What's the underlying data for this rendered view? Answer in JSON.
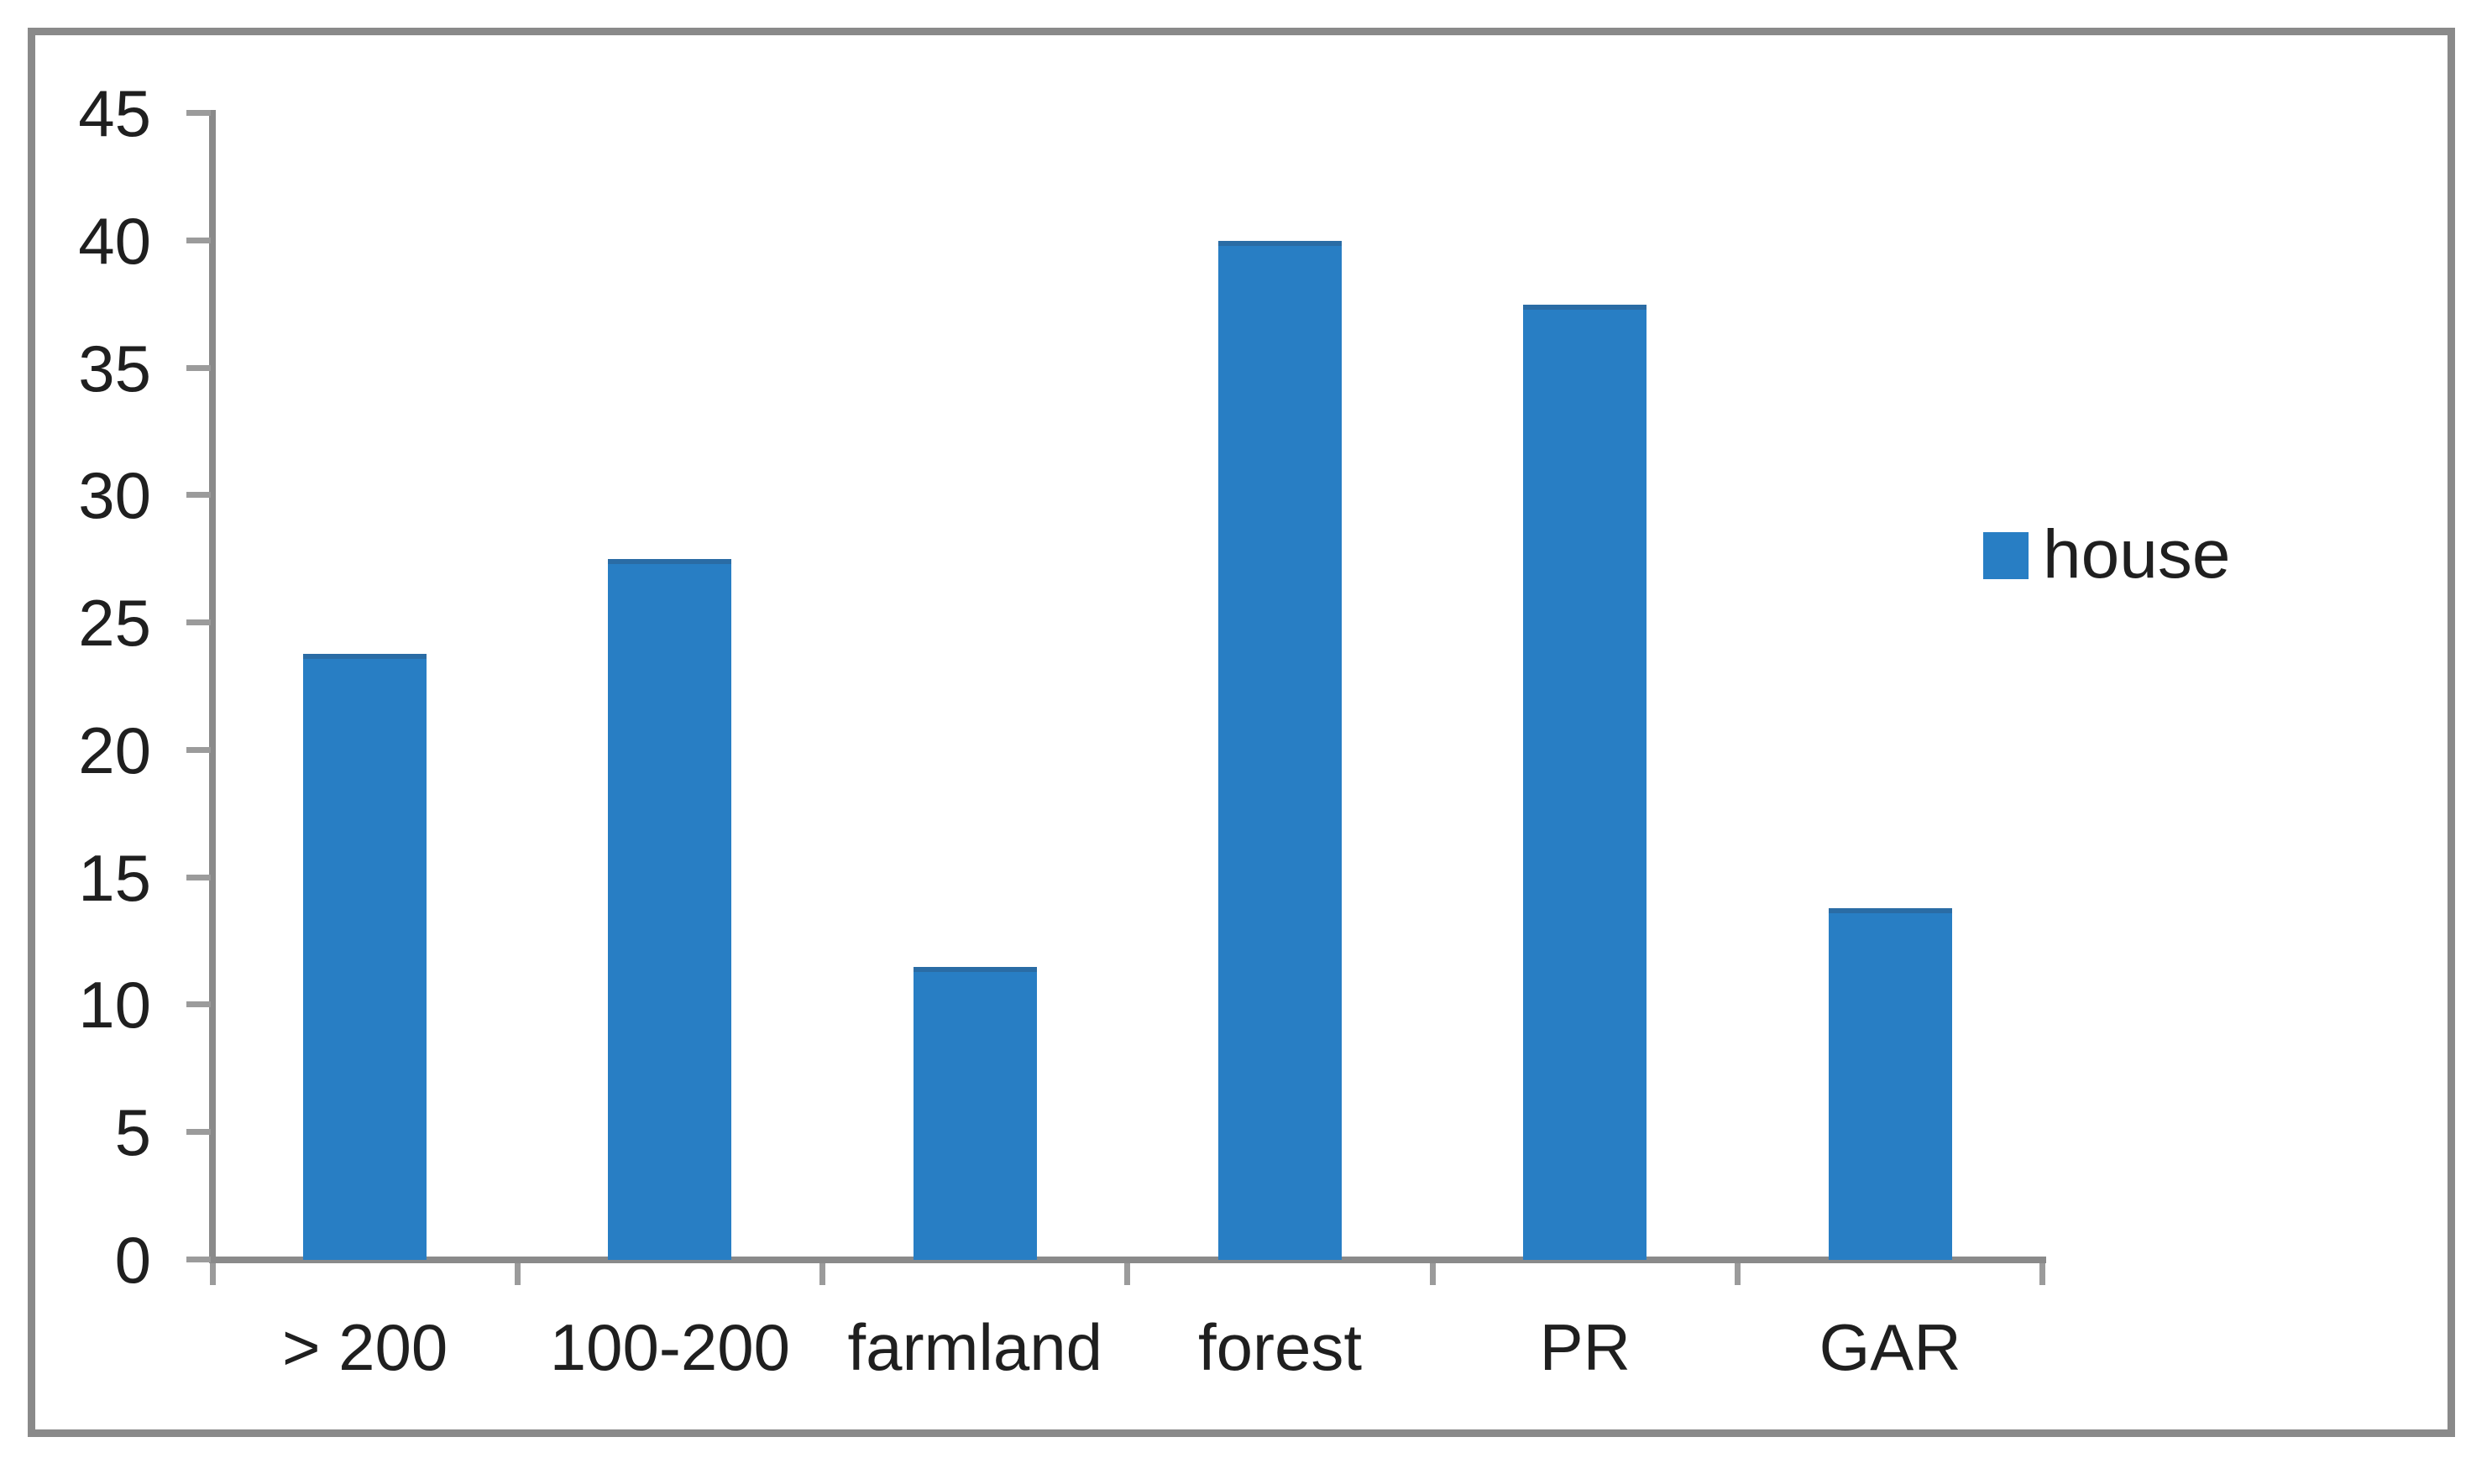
{
  "chart_data": {
    "type": "bar",
    "categories": [
      "> 200",
      "100-200",
      "farmland",
      "forest",
      "PR",
      "GAR"
    ],
    "series": [
      {
        "name": "house",
        "values": [
          23.8,
          27.5,
          11.5,
          40,
          37.5,
          13.8
        ]
      }
    ],
    "title": "",
    "xlabel": "",
    "ylabel": "",
    "ylim": [
      0,
      45
    ],
    "ytick_step": 5,
    "grid": false,
    "legend_position": "right",
    "bar_color": "#287ec4",
    "bar_top_edge_color": "#2a6ca5",
    "axis_color": "#8a8a8a",
    "tick_color": "#9b9b9b",
    "text_color": "#1f1f1f",
    "frame_border_color": "#8a8a8a"
  },
  "y_axis": {
    "ticks": [
      "45",
      "40",
      "35",
      "30",
      "25",
      "20",
      "15",
      "10",
      "5",
      "0"
    ]
  },
  "x_axis": {
    "labels": [
      "> 200",
      "100-200",
      "farmland",
      "forest",
      "PR",
      "GAR"
    ]
  },
  "legend": {
    "label": "house"
  }
}
